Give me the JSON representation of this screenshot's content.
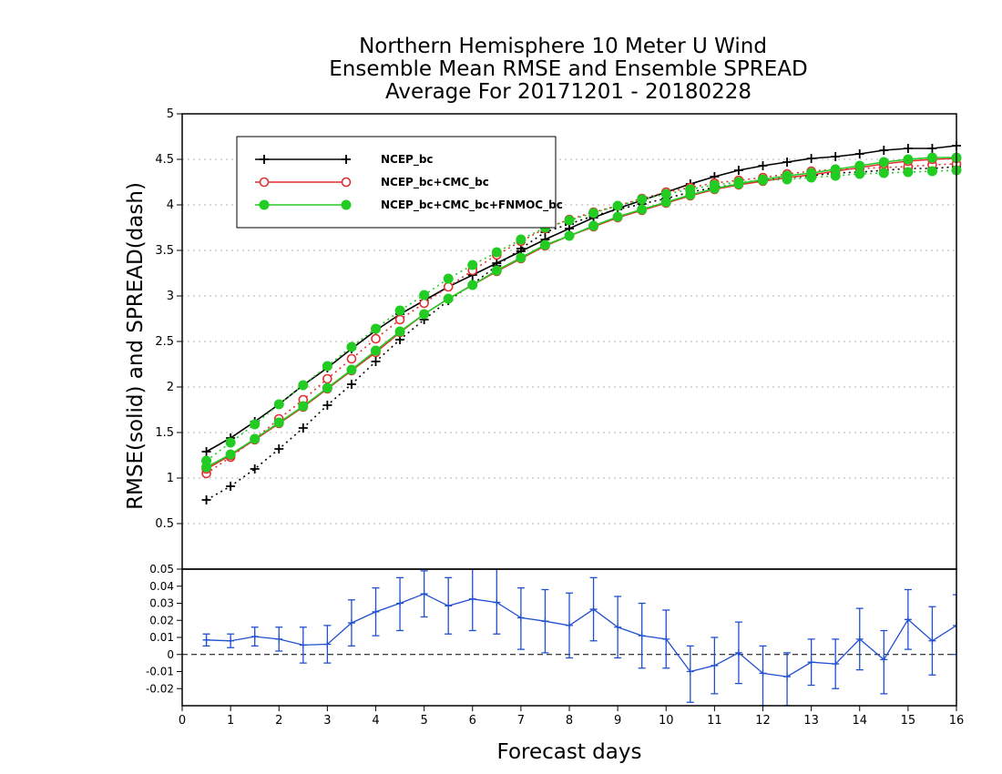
{
  "chart_data": [
    {
      "type": "line",
      "title_lines": [
        "Northern Hemisphere 10 Meter U Wind",
        "Ensemble Mean RMSE and Ensemble SPREAD",
        "Average For 20171201 - 20180228"
      ],
      "ylabel": "RMSE(solid) and SPREAD(dash)",
      "xlim": [
        0,
        16
      ],
      "ylim": [
        0,
        5
      ],
      "y_ticks": [
        "0.5",
        "1",
        "1.5",
        "2",
        "2.5",
        "3",
        "3.5",
        "4",
        "4.5",
        "5"
      ],
      "grid": true,
      "legend_position": "top-left",
      "x": [
        0.5,
        1,
        1.5,
        2,
        2.5,
        3,
        3.5,
        4,
        4.5,
        5,
        5.5,
        6,
        6.5,
        7,
        7.5,
        8,
        8.5,
        9,
        9.5,
        10,
        10.5,
        11,
        11.5,
        12,
        12.5,
        13,
        13.5,
        14,
        14.5,
        15,
        15.5,
        16
      ],
      "series": [
        {
          "name": "NCEP_bc",
          "color": "#000000",
          "marker": "plus",
          "rmse": [
            1.29,
            1.44,
            1.62,
            1.81,
            2.02,
            2.21,
            2.42,
            2.62,
            2.8,
            2.95,
            3.1,
            3.23,
            3.36,
            3.49,
            3.62,
            3.74,
            3.86,
            3.96,
            4.05,
            4.14,
            4.23,
            4.31,
            4.38,
            4.43,
            4.47,
            4.51,
            4.53,
            4.56,
            4.6,
            4.62,
            4.62,
            4.65
          ],
          "spread": [
            0.76,
            0.91,
            1.1,
            1.32,
            1.55,
            1.8,
            2.03,
            2.28,
            2.52,
            2.74,
            2.95,
            3.13,
            3.33,
            3.52,
            3.7,
            3.79,
            3.88,
            3.95,
            4.01,
            4.07,
            4.14,
            4.19,
            4.23,
            4.27,
            4.3,
            4.32,
            4.35,
            4.36,
            4.38,
            4.4,
            4.4,
            4.42
          ]
        },
        {
          "name": "NCEP_bc+CMC_bc",
          "color": "#e03030",
          "marker": "circle",
          "rmse": [
            1.1,
            1.25,
            1.42,
            1.6,
            1.78,
            1.98,
            2.18,
            2.38,
            2.6,
            2.8,
            2.97,
            3.12,
            3.27,
            3.41,
            3.55,
            3.66,
            3.76,
            3.86,
            3.94,
            4.02,
            4.1,
            4.17,
            4.22,
            4.26,
            4.3,
            4.33,
            4.37,
            4.41,
            4.45,
            4.48,
            4.5,
            4.51
          ],
          "spread": [
            1.05,
            1.23,
            1.43,
            1.65,
            1.86,
            2.09,
            2.31,
            2.53,
            2.74,
            2.92,
            3.1,
            3.28,
            3.45,
            3.6,
            3.74,
            3.84,
            3.92,
            3.99,
            4.07,
            4.14,
            4.19,
            4.24,
            4.27,
            4.3,
            4.34,
            4.37,
            4.39,
            4.4,
            4.41,
            4.42,
            4.44,
            4.45
          ]
        },
        {
          "name": "NCEP_bc+CMC_bc+FNMOC_bc",
          "color": "#22cc22",
          "marker": "filled-circle",
          "rmse": [
            1.12,
            1.26,
            1.43,
            1.61,
            1.79,
            1.99,
            2.19,
            2.4,
            2.61,
            2.8,
            2.97,
            3.12,
            3.28,
            3.42,
            3.56,
            3.66,
            3.77,
            3.87,
            3.95,
            4.03,
            4.11,
            4.18,
            4.23,
            4.28,
            4.32,
            4.35,
            4.39,
            4.43,
            4.47,
            4.5,
            4.52,
            4.52
          ],
          "spread": [
            1.19,
            1.39,
            1.59,
            1.81,
            2.02,
            2.23,
            2.44,
            2.64,
            2.84,
            3.01,
            3.19,
            3.34,
            3.48,
            3.62,
            3.75,
            3.83,
            3.91,
            3.99,
            4.06,
            4.12,
            4.17,
            4.22,
            4.25,
            4.27,
            4.28,
            4.3,
            4.32,
            4.34,
            4.35,
            4.36,
            4.37,
            4.38
          ]
        }
      ]
    },
    {
      "type": "line",
      "xlabel": "Forecast days",
      "xlim": [
        0,
        16
      ],
      "ylim": [
        -0.03,
        0.05
      ],
      "x_ticks": [
        "0",
        "1",
        "2",
        "3",
        "4",
        "5",
        "6",
        "7",
        "8",
        "9",
        "10",
        "11",
        "12",
        "13",
        "14",
        "15",
        "16"
      ],
      "y_ticks": [
        "-0.02",
        "-0.01",
        "0",
        "0.01",
        "0.02",
        "0.03",
        "0.04",
        "0.05"
      ],
      "color": "#2050d0",
      "zero_line": true,
      "x": [
        0.5,
        1,
        1.5,
        2,
        2.5,
        3,
        3.5,
        4,
        4.5,
        5,
        5.5,
        6,
        6.5,
        7,
        7.5,
        8,
        8.5,
        9,
        9.5,
        10,
        10.5,
        11,
        11.5,
        12,
        12.5,
        13,
        13.5,
        14,
        14.5,
        15,
        15.5,
        16
      ],
      "values": [
        0.0085,
        0.008,
        0.0105,
        0.009,
        0.0055,
        0.006,
        0.0185,
        0.025,
        0.03,
        0.0355,
        0.0285,
        0.0325,
        0.0305,
        0.0215,
        0.0195,
        0.017,
        0.0265,
        0.016,
        0.011,
        0.009,
        -0.01,
        -0.0065,
        0.001,
        -0.011,
        -0.013,
        -0.0045,
        -0.0055,
        0.009,
        -0.003,
        0.0205,
        0.008,
        0.017
      ],
      "error_low": [
        0.005,
        0.004,
        0.005,
        0.002,
        -0.005,
        -0.005,
        0.005,
        0.011,
        0.014,
        0.022,
        0.012,
        0.014,
        0.012,
        0.003,
        0.001,
        -0.002,
        0.008,
        -0.002,
        -0.008,
        -0.008,
        -0.028,
        -0.023,
        -0.017,
        -0.03,
        -0.03,
        -0.018,
        -0.02,
        -0.009,
        -0.023,
        0.003,
        -0.012,
        0.0
      ],
      "error_high": [
        0.012,
        0.012,
        0.016,
        0.016,
        0.016,
        0.017,
        0.032,
        0.039,
        0.045,
        0.049,
        0.045,
        0.05,
        0.05,
        0.039,
        0.038,
        0.036,
        0.045,
        0.034,
        0.03,
        0.026,
        0.005,
        0.01,
        0.019,
        0.005,
        0.001,
        0.009,
        0.009,
        0.027,
        0.014,
        0.038,
        0.028,
        0.035
      ]
    }
  ]
}
